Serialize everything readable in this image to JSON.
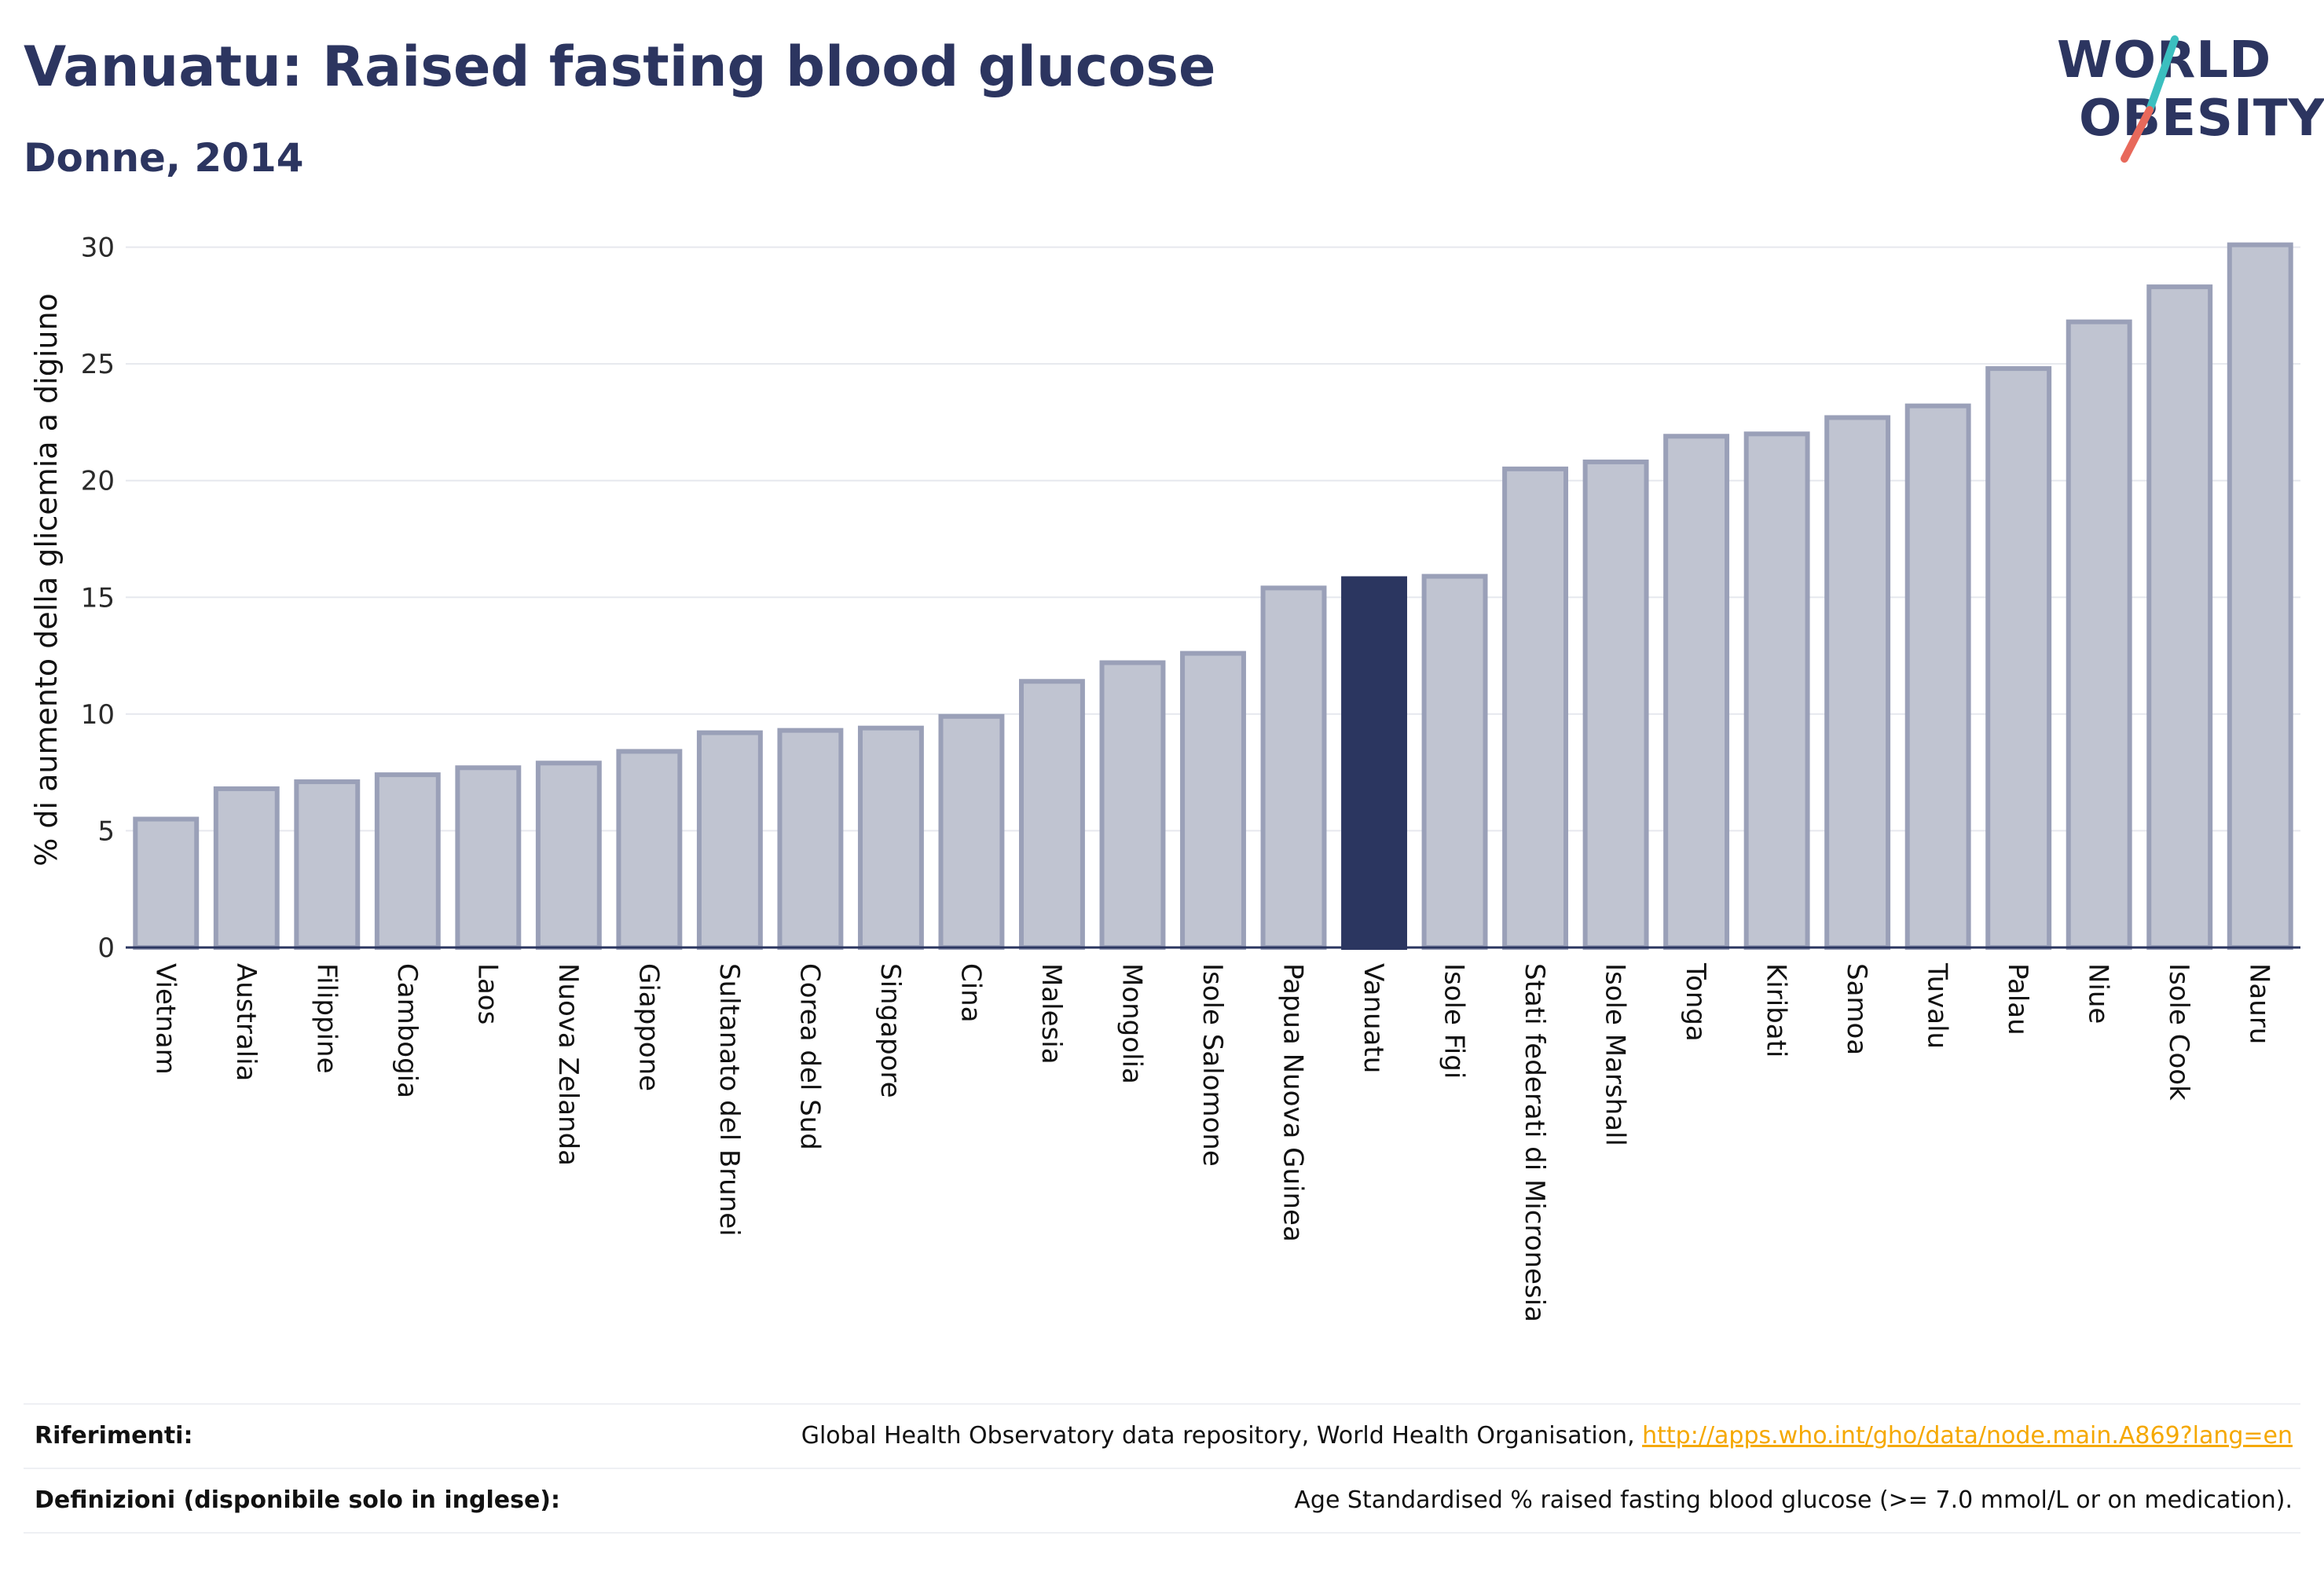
{
  "header": {
    "title": "Vanuatu: Raised fasting blood glucose",
    "subtitle": "Donne, 2014"
  },
  "logo": {
    "line1": "WORLD",
    "line2": "OBESITY",
    "slash_colors": [
      "#3bbfbf",
      "#e8695b"
    ]
  },
  "chart_data": {
    "type": "bar",
    "categories": [
      "Vietnam",
      "Australia",
      "Filippine",
      "Cambogia",
      "Laos",
      "Nuova Zelanda",
      "Giappone",
      "Sultanato del Brunei",
      "Corea del Sud",
      "Singapore",
      "Cina",
      "Malesia",
      "Mongolia",
      "Isole Salomone",
      "Papua Nuova Guinea",
      "Vanuatu",
      "Isole Figi",
      "Stati federati di Micronesia",
      "Isole Marshall",
      "Tonga",
      "Kiribati",
      "Samoa",
      "Tuvalu",
      "Palau",
      "Niue",
      "Isole Cook",
      "Nauru"
    ],
    "values": [
      5.5,
      6.8,
      7.1,
      7.4,
      7.7,
      7.9,
      8.4,
      9.2,
      9.3,
      9.4,
      9.9,
      11.4,
      12.2,
      12.6,
      15.4,
      15.8,
      15.9,
      20.5,
      20.8,
      21.9,
      22.0,
      22.7,
      23.2,
      24.8,
      26.8,
      28.3,
      30.1
    ],
    "highlight": "Vanuatu",
    "ylabel": "% di aumento della glicemia a digiuno",
    "xlabel": "",
    "ylim": [
      0,
      31.5
    ],
    "yticks": [
      0,
      5,
      10,
      15,
      20,
      25,
      30
    ],
    "grid": true,
    "colors": {
      "bar_fill": "#c0c4d1",
      "bar_border": "#9aa0b8",
      "highlight_fill": "#2b3660",
      "grid": "#e6e8ee",
      "axis": "#2b3660"
    }
  },
  "footer": {
    "references_label": "Riferimenti:",
    "references_text": "Global Health Observatory data repository, World Health Organisation, ",
    "references_link": "http://apps.who.int/gho/data/node.main.A869?lang=en",
    "definitions_label": "Definizioni (disponibile solo in inglese):",
    "definitions_text": "Age Standardised % raised fasting blood glucose (>= 7.0 mmol/L or on medication)."
  }
}
